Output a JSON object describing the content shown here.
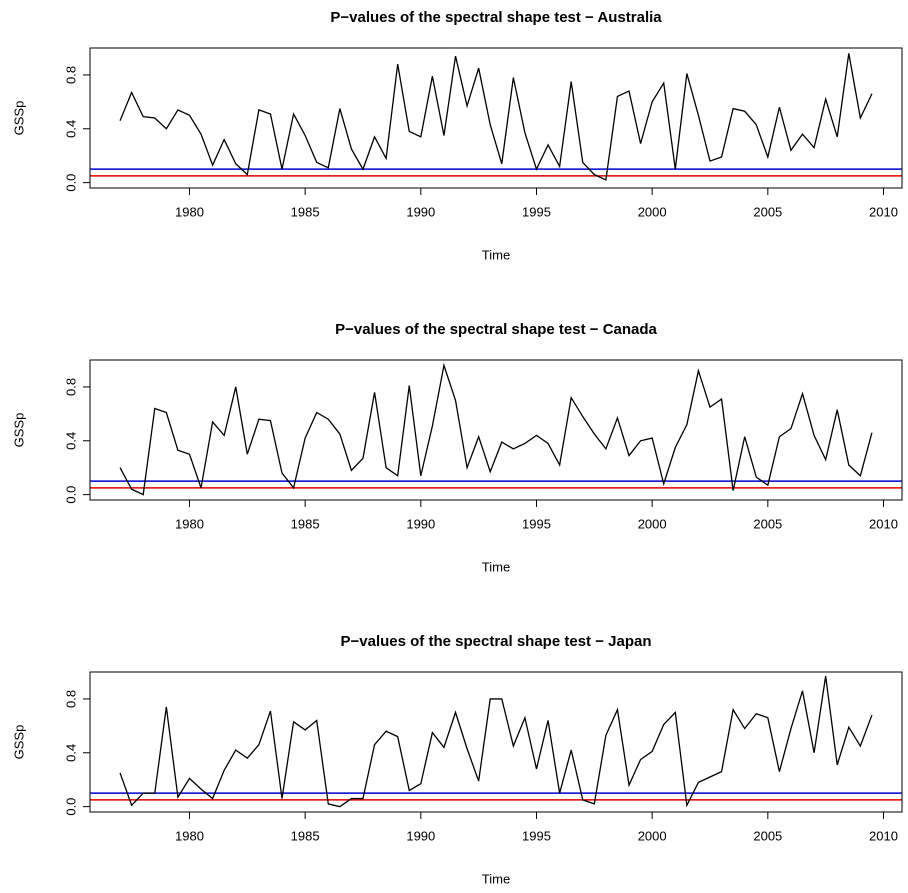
{
  "chart_data": [
    {
      "type": "line",
      "title": "P−values of the spectral shape test − Australia",
      "x_label": "Time",
      "y_label": "GSSp",
      "x": [
        1977,
        1977.5,
        1978,
        1978.5,
        1979,
        1979.5,
        1980,
        1980.5,
        1981,
        1981.5,
        1982,
        1982.5,
        1983,
        1983.5,
        1984,
        1984.5,
        1985,
        1985.5,
        1986,
        1986.5,
        1987,
        1987.5,
        1988,
        1988.5,
        1989,
        1989.5,
        1990,
        1990.5,
        1991,
        1991.5,
        1992,
        1992.5,
        1993,
        1993.5,
        1994,
        1994.5,
        1995,
        1995.5,
        1996,
        1996.5,
        1997,
        1997.5,
        1998,
        1998.5,
        1999,
        1999.5,
        2000,
        2000.5,
        2001,
        2001.5,
        2002,
        2002.5,
        2003,
        2003.5,
        2004,
        2004.5,
        2005,
        2005.5,
        2006,
        2006.5,
        2007,
        2007.5,
        2008,
        2008.5,
        2009,
        2009.5
      ],
      "values": [
        0.46,
        0.67,
        0.49,
        0.48,
        0.4,
        0.54,
        0.5,
        0.36,
        0.13,
        0.32,
        0.14,
        0.06,
        0.54,
        0.51,
        0.1,
        0.51,
        0.35,
        0.15,
        0.11,
        0.55,
        0.25,
        0.1,
        0.34,
        0.18,
        0.88,
        0.38,
        0.34,
        0.79,
        0.35,
        0.94,
        0.57,
        0.85,
        0.43,
        0.14,
        0.78,
        0.37,
        0.1,
        0.28,
        0.12,
        0.75,
        0.15,
        0.06,
        0.02,
        0.64,
        0.68,
        0.29,
        0.6,
        0.74,
        0.1,
        0.81,
        0.5,
        0.16,
        0.19,
        0.55,
        0.53,
        0.43,
        0.19,
        0.56,
        0.24,
        0.36,
        0.26,
        0.62,
        0.34,
        0.96,
        0.48,
        0.66
      ],
      "color": "#000000",
      "hlines": [
        {
          "value": 0.1,
          "color": "#0000cd"
        },
        {
          "value": 0.05,
          "color": "#e00000"
        }
      ],
      "xlim": [
        1975.7,
        2010.8
      ],
      "ylim": [
        -0.04,
        1.0
      ],
      "xticks": [
        1980,
        1985,
        1990,
        1995,
        2000,
        2005,
        2010
      ],
      "yticks": [
        {
          "value": 0,
          "label": "0.0"
        },
        {
          "value": 0.4,
          "label": "0.4"
        },
        {
          "value": 0.8,
          "label": "0.8"
        }
      ]
    },
    {
      "type": "line",
      "title": "P−values of the spectral shape test − Canada",
      "x_label": "Time",
      "y_label": "GSSp",
      "x": [
        1977,
        1977.5,
        1978,
        1978.5,
        1979,
        1979.5,
        1980,
        1980.5,
        1981,
        1981.5,
        1982,
        1982.5,
        1983,
        1983.5,
        1984,
        1984.5,
        1985,
        1985.5,
        1986,
        1986.5,
        1987,
        1987.5,
        1988,
        1988.5,
        1989,
        1989.5,
        1990,
        1990.5,
        1991,
        1991.5,
        1992,
        1992.5,
        1993,
        1993.5,
        1994,
        1994.5,
        1995,
        1995.5,
        1996,
        1996.5,
        1997,
        1997.5,
        1998,
        1998.5,
        1999,
        1999.5,
        2000,
        2000.5,
        2001,
        2001.5,
        2002,
        2002.5,
        2003,
        2003.5,
        2004,
        2004.5,
        2005,
        2005.5,
        2006,
        2006.5,
        2007,
        2007.5,
        2008,
        2008.5,
        2009,
        2009.5
      ],
      "values": [
        0.2,
        0.04,
        0.0,
        0.64,
        0.61,
        0.33,
        0.3,
        0.05,
        0.54,
        0.44,
        0.8,
        0.3,
        0.56,
        0.55,
        0.16,
        0.05,
        0.42,
        0.61,
        0.56,
        0.45,
        0.18,
        0.27,
        0.76,
        0.2,
        0.14,
        0.81,
        0.14,
        0.51,
        0.96,
        0.7,
        0.2,
        0.43,
        0.17,
        0.39,
        0.34,
        0.38,
        0.44,
        0.38,
        0.22,
        0.72,
        0.58,
        0.45,
        0.34,
        0.57,
        0.29,
        0.4,
        0.42,
        0.08,
        0.35,
        0.52,
        0.92,
        0.65,
        0.71,
        0.03,
        0.43,
        0.13,
        0.07,
        0.43,
        0.49,
        0.75,
        0.44,
        0.26,
        0.63,
        0.22,
        0.14,
        0.46
      ],
      "color": "#000000",
      "hlines": [
        {
          "value": 0.1,
          "color": "#0000cd"
        },
        {
          "value": 0.05,
          "color": "#e00000"
        }
      ],
      "xlim": [
        1975.7,
        2010.8
      ],
      "ylim": [
        -0.04,
        1.0
      ],
      "xticks": [
        1980,
        1985,
        1990,
        1995,
        2000,
        2005,
        2010
      ],
      "yticks": [
        {
          "value": 0,
          "label": "0.0"
        },
        {
          "value": 0.4,
          "label": "0.4"
        },
        {
          "value": 0.8,
          "label": "0.8"
        }
      ]
    },
    {
      "type": "line",
      "title": "P−values of the spectral shape test − Japan",
      "x_label": "Time",
      "y_label": "GSSp",
      "x": [
        1977,
        1977.5,
        1978,
        1978.5,
        1979,
        1979.5,
        1980,
        1980.5,
        1981,
        1981.5,
        1982,
        1982.5,
        1983,
        1983.5,
        1984,
        1984.5,
        1985,
        1985.5,
        1986,
        1986.5,
        1987,
        1987.5,
        1988,
        1988.5,
        1989,
        1989.5,
        1990,
        1990.5,
        1991,
        1991.5,
        1992,
        1992.5,
        1993,
        1993.5,
        1994,
        1994.5,
        1995,
        1995.5,
        1996,
        1996.5,
        1997,
        1997.5,
        1998,
        1998.5,
        1999,
        1999.5,
        2000,
        2000.5,
        2001,
        2001.5,
        2002,
        2002.5,
        2003,
        2003.5,
        2004,
        2004.5,
        2005,
        2005.5,
        2006,
        2006.5,
        2007,
        2007.5,
        2008,
        2008.5,
        2009,
        2009.5
      ],
      "values": [
        0.25,
        0.01,
        0.1,
        0.1,
        0.74,
        0.07,
        0.21,
        0.13,
        0.06,
        0.27,
        0.42,
        0.36,
        0.46,
        0.71,
        0.06,
        0.63,
        0.57,
        0.64,
        0.02,
        0.0,
        0.06,
        0.06,
        0.46,
        0.56,
        0.52,
        0.12,
        0.17,
        0.55,
        0.44,
        0.7,
        0.43,
        0.19,
        0.8,
        0.8,
        0.45,
        0.66,
        0.28,
        0.64,
        0.1,
        0.42,
        0.05,
        0.02,
        0.53,
        0.72,
        0.16,
        0.35,
        0.41,
        0.61,
        0.7,
        0.01,
        0.18,
        0.22,
        0.26,
        0.72,
        0.58,
        0.69,
        0.66,
        0.26,
        0.58,
        0.86,
        0.4,
        0.97,
        0.31,
        0.59,
        0.45,
        0.68
      ],
      "color": "#000000",
      "hlines": [
        {
          "value": 0.1,
          "color": "#0000cd"
        },
        {
          "value": 0.05,
          "color": "#e00000"
        }
      ],
      "xlim": [
        1975.7,
        2010.8
      ],
      "ylim": [
        -0.04,
        1.0
      ],
      "xticks": [
        1980,
        1985,
        1990,
        1995,
        2000,
        2005,
        2010
      ],
      "yticks": [
        {
          "value": 0,
          "label": "0.0"
        },
        {
          "value": 0.4,
          "label": "0.4"
        },
        {
          "value": 0.8,
          "label": "0.8"
        }
      ]
    }
  ]
}
